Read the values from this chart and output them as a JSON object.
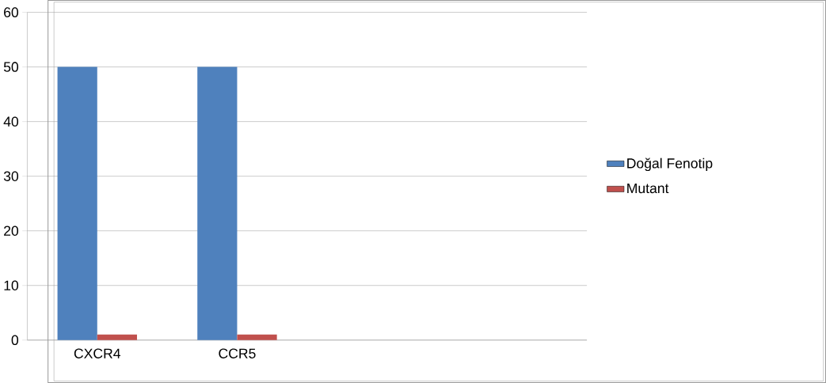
{
  "chart_data": {
    "type": "bar",
    "categories": [
      "CXCR4",
      "CCR5",
      null,
      null
    ],
    "series": [
      {
        "name": "Doğal Fenotip",
        "color": "#4f81bd",
        "values": [
          50,
          50,
          null,
          null
        ]
      },
      {
        "name": "Mutant",
        "color": "#c0504d",
        "values": [
          1,
          1,
          null,
          null
        ]
      }
    ],
    "ylim": [
      0,
      60
    ],
    "yticks": [
      0,
      10,
      20,
      30,
      40,
      50,
      60
    ],
    "grid": "y",
    "legend": "right"
  }
}
